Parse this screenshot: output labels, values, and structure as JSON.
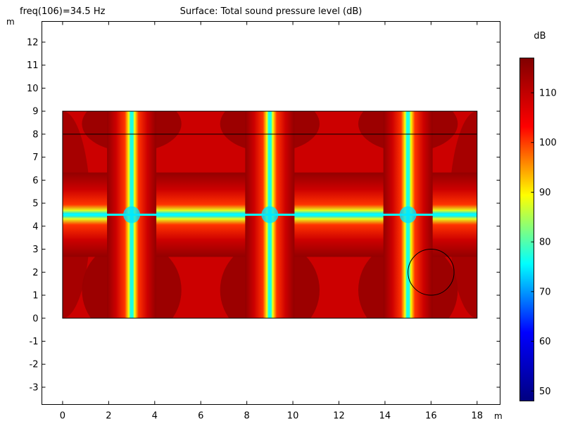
{
  "chart_data": {
    "type": "heatmap",
    "header_left": "freq(106)=34.5 Hz",
    "title": "Surface: Total sound pressure level (dB)",
    "x_unit": "m",
    "y_unit": "m",
    "xlim": [
      -0.9,
      19
    ],
    "ylim": [
      -3.75,
      12.9
    ],
    "x_ticks": [
      0,
      2,
      4,
      6,
      8,
      10,
      12,
      14,
      16,
      18
    ],
    "y_ticks": [
      -3,
      -2,
      -1,
      0,
      1,
      2,
      3,
      4,
      5,
      6,
      7,
      8,
      9,
      10,
      11,
      12
    ],
    "domain": {
      "x": [
        0,
        18
      ],
      "y": [
        0,
        9
      ]
    },
    "interior_line_y": 8,
    "circle": {
      "cx": 16,
      "cy": 2,
      "r": 1
    },
    "nodal_lines_x": [
      3,
      9,
      15
    ],
    "nodal_line_y": 4.5,
    "grid": false,
    "colorbar": {
      "unit": "dB",
      "min": 48,
      "max": 117,
      "ticks": [
        50,
        60,
        70,
        80,
        90,
        100,
        110
      ],
      "colors": [
        "#000080",
        "#0000ff",
        "#00ffff",
        "#ffff00",
        "#ff0000",
        "#800000"
      ],
      "position": "right"
    }
  }
}
